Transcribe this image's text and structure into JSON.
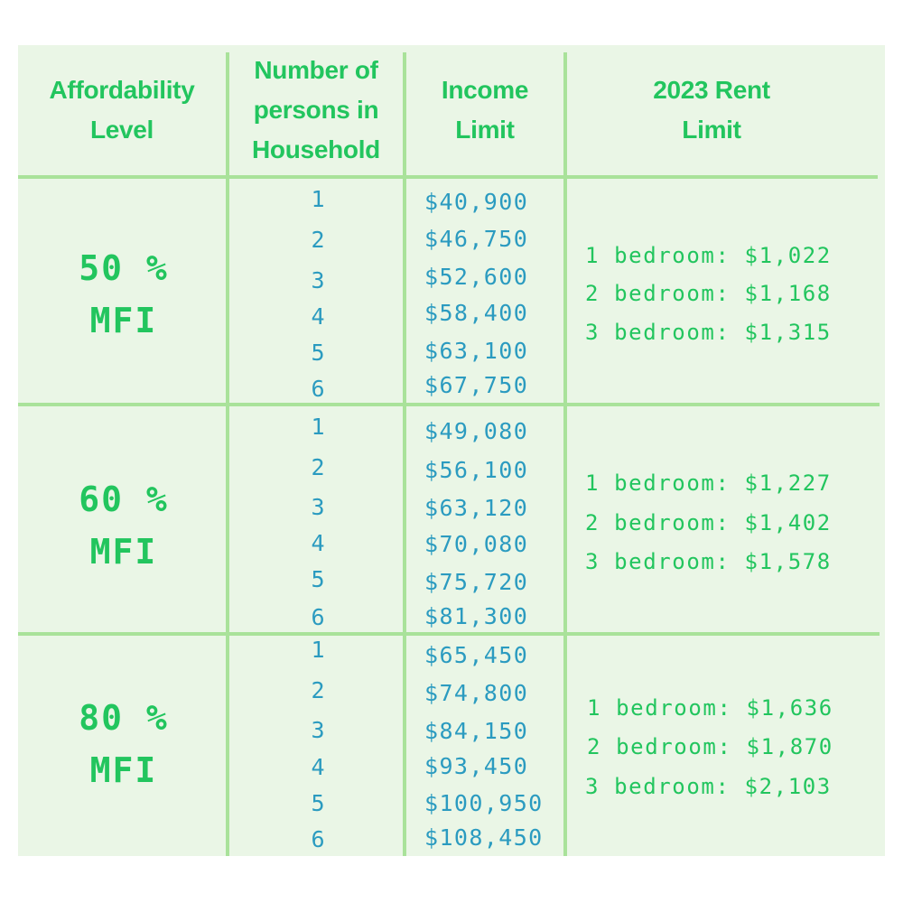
{
  "header": {
    "col1": [
      "Affordability",
      "Level"
    ],
    "col2": [
      "Number of",
      "persons in",
      "Household"
    ],
    "col3": [
      "Income",
      "Limit"
    ],
    "col4": [
      "2023 Rent",
      "Limit"
    ]
  },
  "groups": [
    {
      "level": [
        "50 %",
        "MFI"
      ],
      "persons": [
        "1",
        "2",
        "3",
        "4",
        "5",
        "6"
      ],
      "income": [
        "$40,900",
        "$46,750",
        "$52,600",
        "$58,400",
        "$63,100",
        "$67,750"
      ],
      "rent": [
        "1 bedroom: $1,022",
        "2 bedroom: $1,168",
        "3 bedroom: $1,315"
      ]
    },
    {
      "level": [
        "60 %",
        "MFI"
      ],
      "persons": [
        "1",
        "2",
        "3",
        "4",
        "5",
        "6"
      ],
      "income": [
        "$49,080",
        "$56,100",
        "$63,120",
        "$70,080",
        "$75,720",
        "$81,300"
      ],
      "rent": [
        "1 bedroom: $1,227",
        "2 bedroom: $1,402",
        "3 bedroom: $1,578"
      ]
    },
    {
      "level": [
        "80 %",
        "MFI"
      ],
      "persons": [
        "1",
        "2",
        "3",
        "4",
        "5",
        "6"
      ],
      "income": [
        "$65,450",
        "$74,800",
        "$84,150",
        "$93,450",
        "$100,950",
        "$108,450"
      ],
      "rent": [
        "1 bedroom: $1,636",
        "2 bedroom: $1,870",
        "3 bedroom: $2,103"
      ]
    }
  ],
  "colors": {
    "background": "#eaf6e6",
    "divider": "#a9e29a",
    "green_text": "#22c55e",
    "blue_text": "#2b9bc0"
  }
}
